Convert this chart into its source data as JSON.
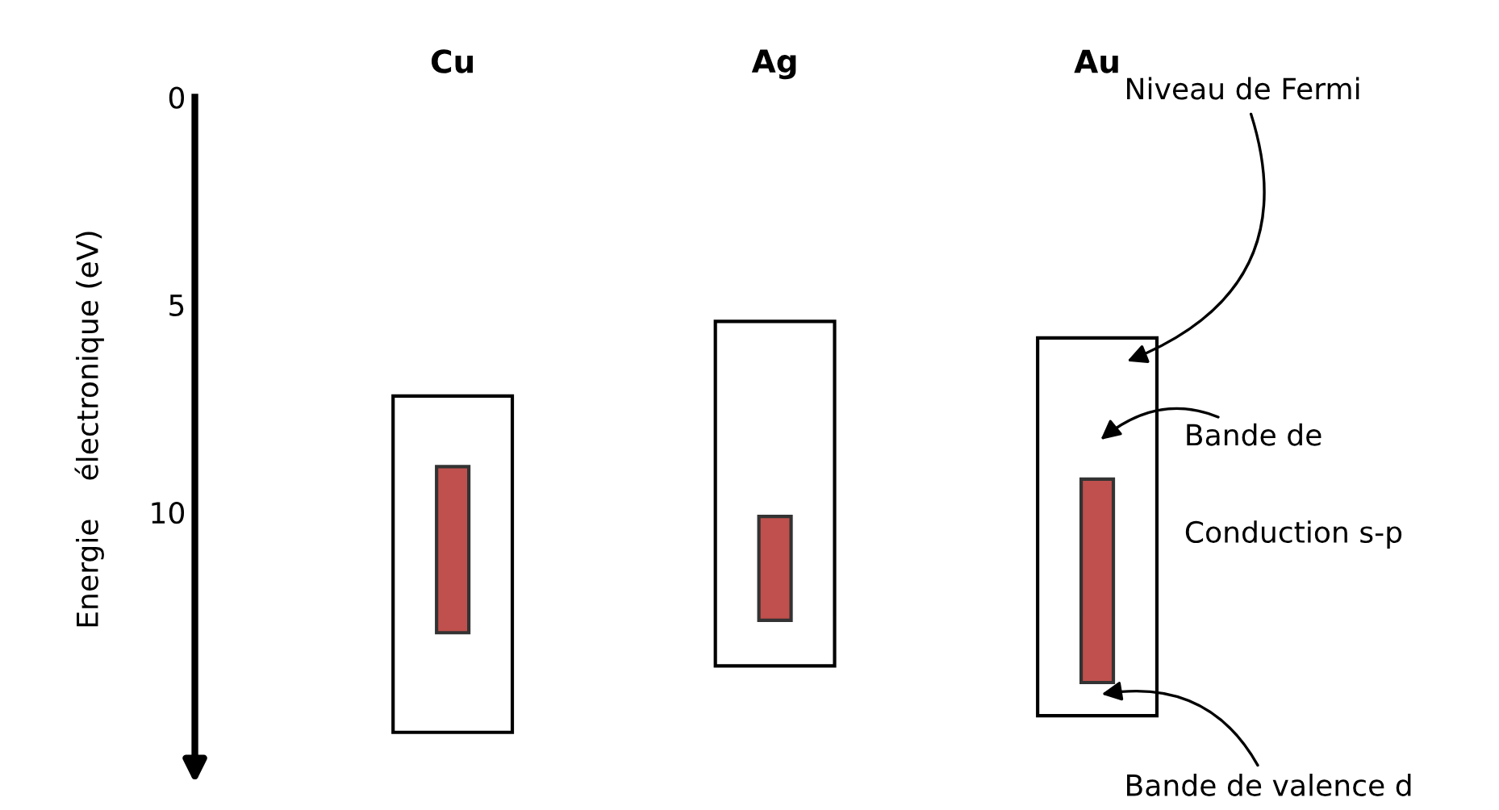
{
  "chart_data": {
    "type": "bar",
    "ylabel": "Energie    électronique (eV)",
    "categories": [
      "Cu",
      "Ag",
      "Au"
    ],
    "series": [
      {
        "color": "#ffffff",
        "base": [
          7.2,
          5.4,
          5.8
        ],
        "values": [
          8.1,
          8.3,
          9.1
        ]
      },
      {
        "color": "#c0504d",
        "base": [
          8.9,
          10.1,
          9.2
        ],
        "values": [
          4.0,
          2.5,
          4.9
        ]
      }
    ],
    "ylim": [
      16,
      0
    ],
    "yticks": [
      0,
      5,
      10
    ],
    "grid": false,
    "annotations": [
      "Niveau de Fermi",
      "Bande de",
      "Conduction s-p",
      "Bande de valence d"
    ]
  }
}
